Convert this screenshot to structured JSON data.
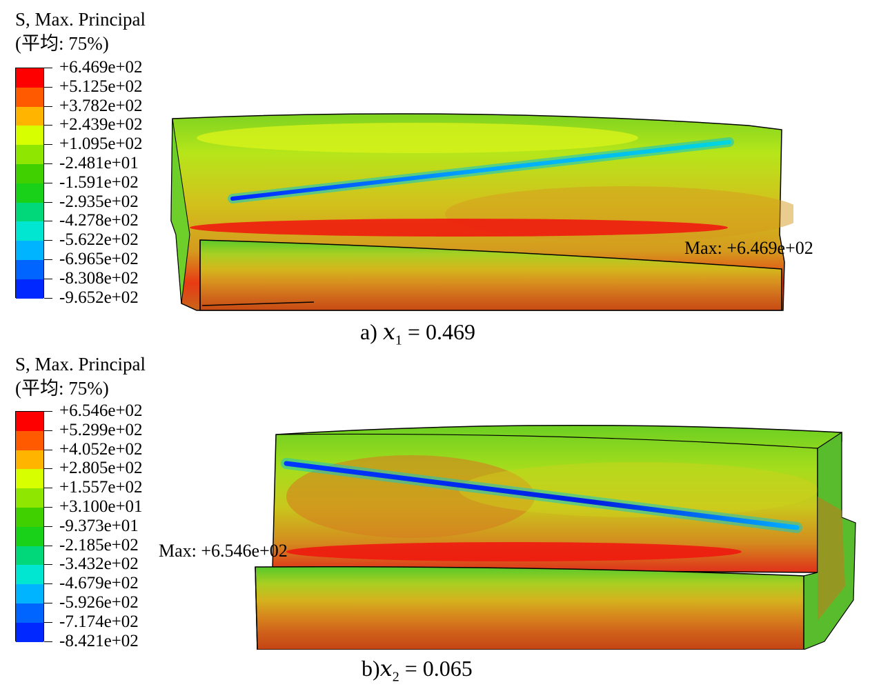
{
  "panel_a": {
    "legend_title": "S, Max. Principal",
    "legend_avg": "(平均: 75%)",
    "legend_values": [
      "+6.469e+02",
      "+5.125e+02",
      "+3.782e+02",
      "+2.439e+02",
      "+1.095e+02",
      "-2.481e+01",
      "-1.591e+02",
      "-2.935e+02",
      "-4.278e+02",
      "-5.622e+02",
      "-6.965e+02",
      "-8.308e+02",
      "-9.652e+02"
    ],
    "max_label": "Max: +6.469e+02",
    "caption_prefix": "a) ",
    "caption_var": "x",
    "caption_sub": "1",
    "caption_value": " = 0.469"
  },
  "panel_b": {
    "legend_title": "S, Max. Principal",
    "legend_avg": "(平均: 75%)",
    "legend_values": [
      "+6.546e+02",
      "+5.299e+02",
      "+4.052e+02",
      "+2.805e+02",
      "+1.557e+02",
      "+3.100e+01",
      "-9.373e+01",
      "-2.185e+02",
      "-3.432e+02",
      "-4.679e+02",
      "-5.926e+02",
      "-7.174e+02",
      "-8.421e+02"
    ],
    "max_label": "Max: +6.546e+02",
    "caption_prefix": "b)",
    "caption_var": "x",
    "caption_sub": "2",
    "caption_value": " = 0.065"
  },
  "colors": {
    "contour_scale": [
      "#ff0000",
      "#ff5a00",
      "#ffb400",
      "#d8ff00",
      "#8fe600",
      "#40d000",
      "#1ad11a",
      "#00d87a",
      "#00e6d0",
      "#00b4ff",
      "#0064ff",
      "#0028ff"
    ],
    "edge": "#000000"
  }
}
